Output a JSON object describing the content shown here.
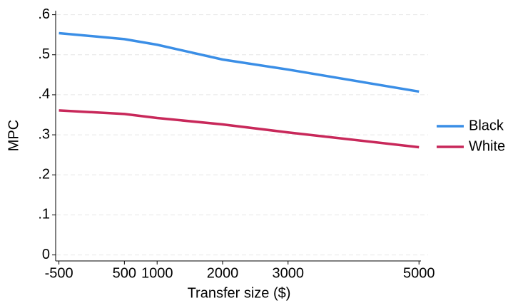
{
  "chart_data": {
    "type": "line",
    "x_label": "Transfer size ($)",
    "y_label": "MPC",
    "x": [
      -500,
      500,
      1000,
      2000,
      3000,
      5000
    ],
    "series": [
      {
        "name": "Black",
        "color": "#3a8ee6",
        "values": [
          0.554,
          0.539,
          0.525,
          0.488,
          0.463,
          0.408
        ]
      },
      {
        "name": "White",
        "color": "#c8285a",
        "values": [
          0.361,
          0.352,
          0.342,
          0.326,
          0.306,
          0.269
        ]
      }
    ],
    "xlim": [
      -550,
      5030
    ],
    "ylim": [
      -0.015,
      0.61
    ],
    "xticks": [
      -500,
      500,
      1000,
      2000,
      3000,
      5000
    ],
    "yticks": [
      0,
      {
        "value": 0.1,
        "label": ".1"
      },
      {
        "value": 0.2,
        "label": ".2"
      },
      {
        "value": 0.3,
        "label": ".3"
      },
      {
        "value": 0.4,
        "label": ".4"
      },
      {
        "value": 0.5,
        "label": ".5"
      },
      {
        "value": 0.6,
        "label": ".6"
      }
    ],
    "grid": true,
    "legend": "right"
  }
}
